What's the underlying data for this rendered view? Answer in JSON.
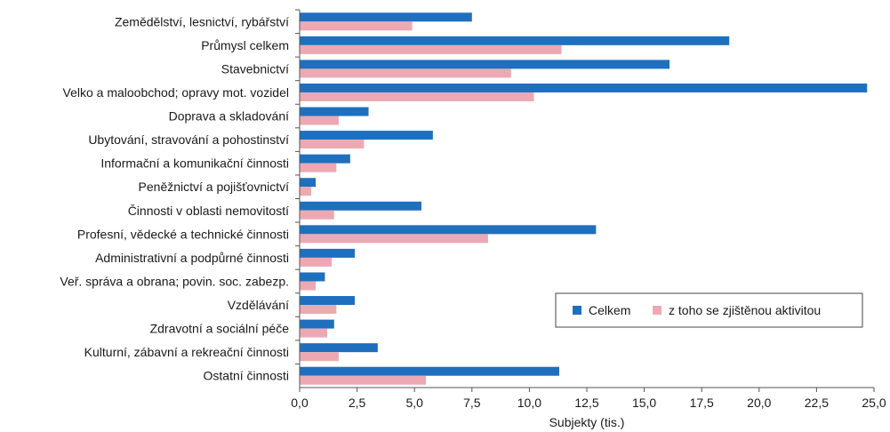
{
  "chart_data": {
    "type": "bar",
    "orientation": "horizontal",
    "categories": [
      "Zemědělství, lesnictví, rybářství",
      "Průmysl celkem",
      "Stavebnictví",
      "Velko a maloobchod; opravy mot. vozidel",
      "Doprava a skladování",
      "Ubytování, stravování a pohostinství",
      "Informační a komunikační činnosti",
      "Peněžnictví a pojišťovnictví",
      "Činnosti v oblasti nemovitostí",
      "Profesní, vědecké a technické činnosti",
      "Administrativní a podpůrné činnosti",
      "Veř. správa a obrana; povin. soc. zabezp.",
      "Vzdělávání",
      "Zdravotní a sociální péče",
      "Kulturní, zábavní a rekreační činnosti",
      "Ostatní činnosti"
    ],
    "series": [
      {
        "name": "Celkem",
        "color": "#1f6fbf",
        "values": [
          7.5,
          18.7,
          16.1,
          24.7,
          3.0,
          5.8,
          2.2,
          0.7,
          5.3,
          12.9,
          2.4,
          1.1,
          2.4,
          1.5,
          3.4,
          11.3
        ]
      },
      {
        "name": "z toho se zjištěnou aktivitou",
        "color": "#eda9b3",
        "values": [
          4.9,
          11.4,
          9.2,
          10.2,
          1.7,
          2.8,
          1.6,
          0.5,
          1.5,
          8.2,
          1.4,
          0.7,
          1.6,
          1.2,
          1.7,
          5.5
        ]
      }
    ],
    "xlabel": "Subjekty (tis.)",
    "xlim": [
      0,
      25
    ],
    "xticks": [
      "0,0",
      "2,5",
      "5,0",
      "7,5",
      "10,0",
      "12,5",
      "15,0",
      "17,5",
      "20,0",
      "22,5",
      "25,0"
    ],
    "grid": false,
    "legend_position": "bottom-right"
  }
}
